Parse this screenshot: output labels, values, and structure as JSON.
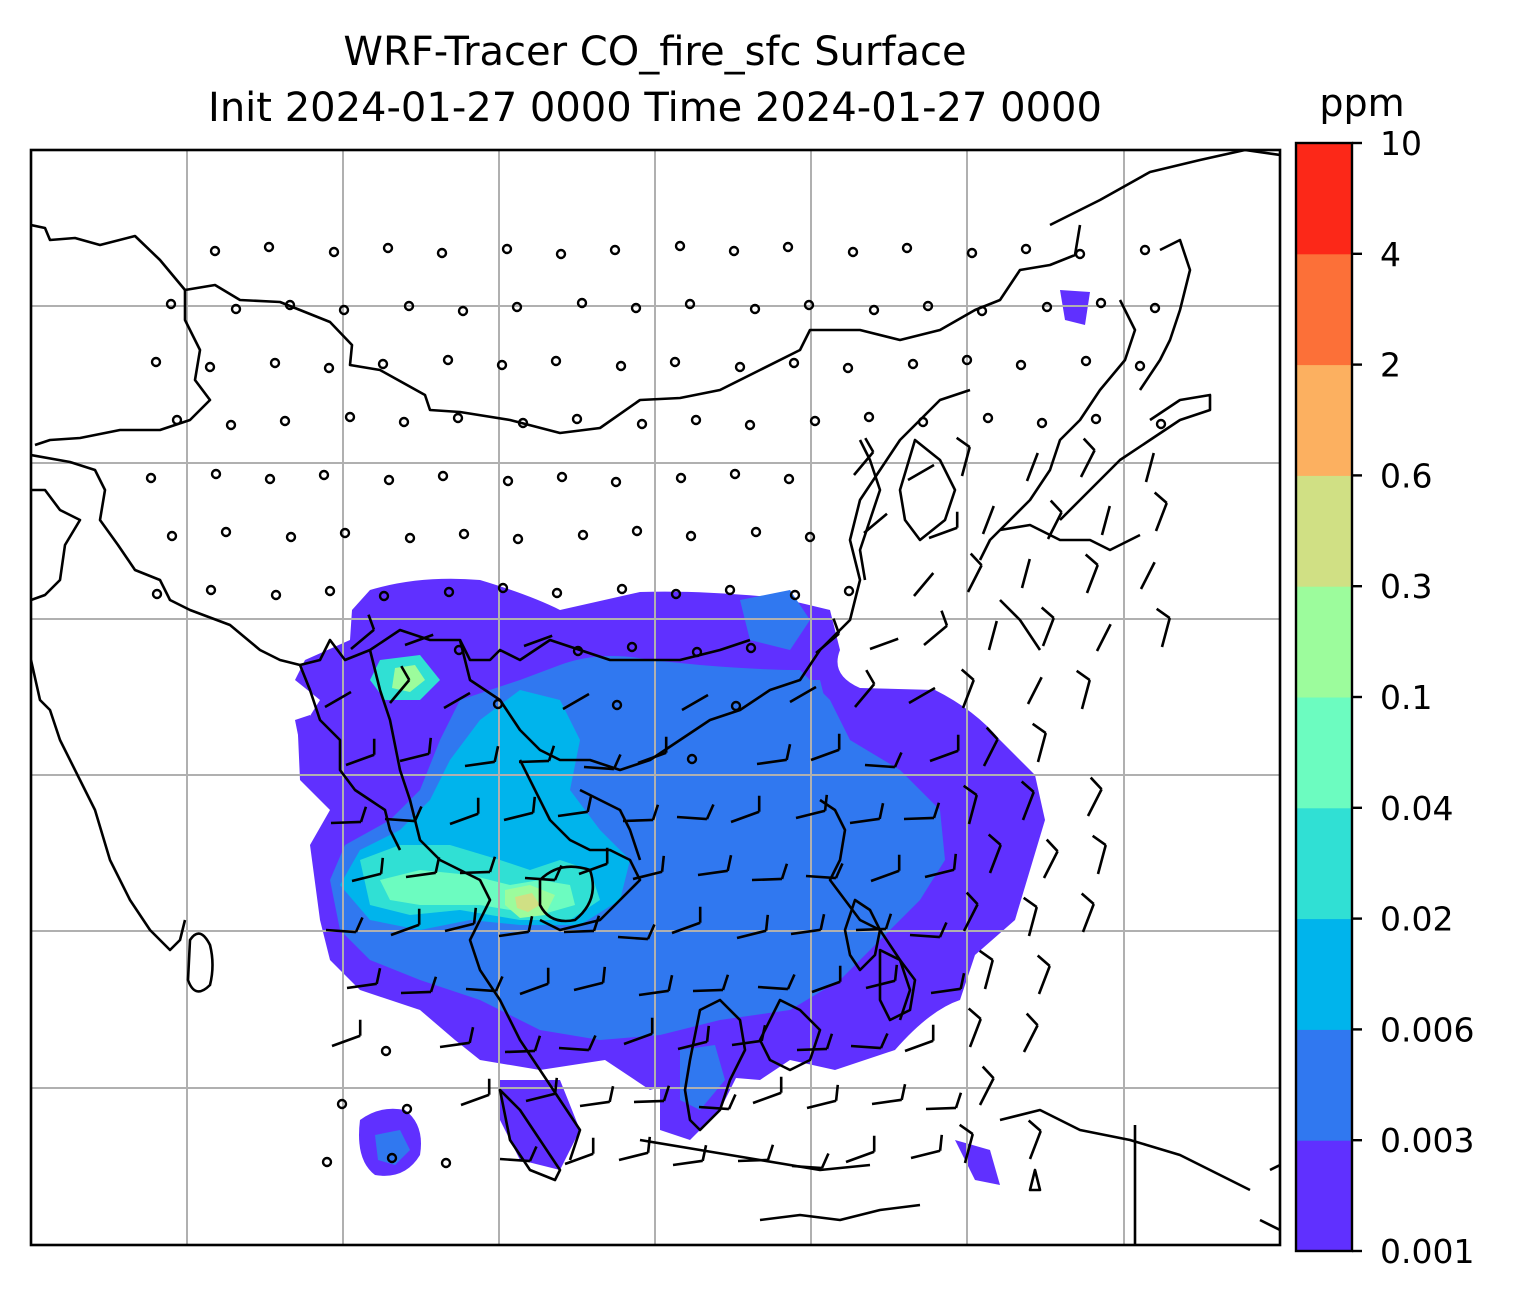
{
  "title": {
    "line1": "WRF-Tracer CO_fire_sfc Surface",
    "line2": "Init 2024-01-27 0000 Time 2024-01-27 0000"
  },
  "colorbar": {
    "unit": "ppm",
    "ticks": [
      "0.001",
      "0.003",
      "0.006",
      "0.02",
      "0.04",
      "0.1",
      "0.3",
      "0.6",
      "2",
      "4",
      "10"
    ],
    "colors": [
      "#6030ff",
      "#3078f0",
      "#00b4ec",
      "#30e0d4",
      "#6cfcc0",
      "#9cfc9c",
      "#d0e084",
      "#fcb060",
      "#fc7038",
      "#fc2818"
    ]
  },
  "map": {
    "frame_color": "#000000",
    "grid_color": "#b0b0b0",
    "coastline_color": "#000000",
    "wind_symbol": "wind-barb",
    "calm_symbol": "calm-circle"
  }
}
